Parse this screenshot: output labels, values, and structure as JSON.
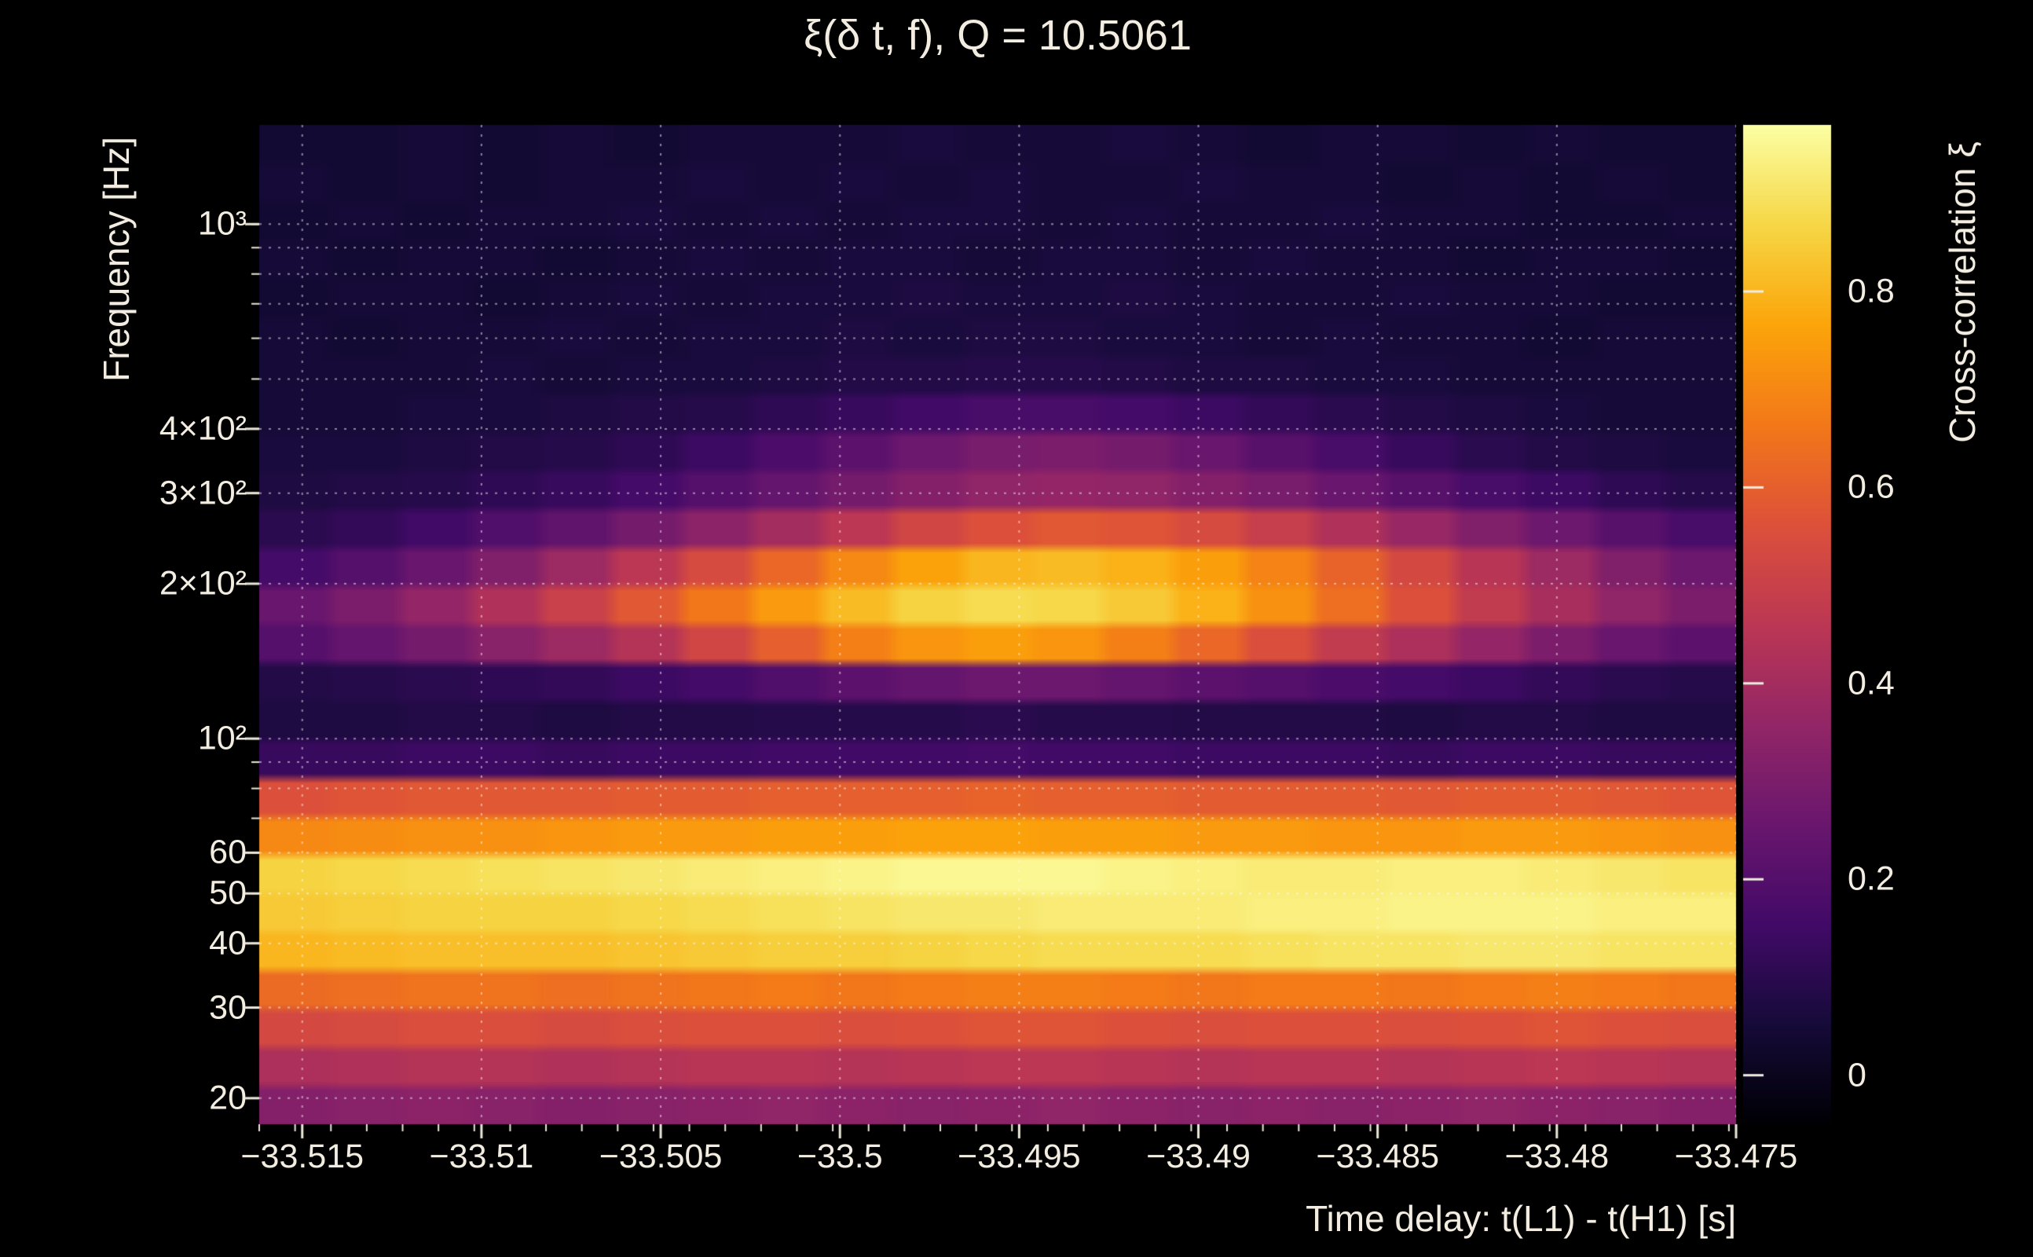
{
  "chart_data": {
    "type": "heatmap",
    "title": "ξ(δ t, f), Q = 10.5061",
    "xlabel": "Time delay: t(L1) - t(H1) [s]",
    "ylabel": "Frequency [Hz]",
    "colorbar_label": "Cross-correlation ξ",
    "x_range": [
      -33.5162,
      -33.475
    ],
    "y_range_hz": [
      17.8,
      1559
    ],
    "y_scale": "log",
    "grid_on": true,
    "x_ticks": [
      -33.515,
      -33.51,
      -33.505,
      -33.5,
      -33.495,
      -33.49,
      -33.485,
      -33.48,
      -33.475
    ],
    "x_tick_labels": [
      "−33.515",
      "−33.51",
      "−33.505",
      "−33.5",
      "−33.495",
      "−33.49",
      "−33.485",
      "−33.48",
      "−33.475"
    ],
    "x_minor_step": 0.001,
    "y_ticks": [
      {
        "hz": 1000,
        "label": "10³"
      },
      {
        "hz": 400,
        "label": "4×10²"
      },
      {
        "hz": 300,
        "label": "3×10²"
      },
      {
        "hz": 200,
        "label": "2×10²"
      },
      {
        "hz": 100,
        "label": "10²"
      },
      {
        "hz": 60,
        "label": "60"
      },
      {
        "hz": 50,
        "label": "50"
      },
      {
        "hz": 40,
        "label": "40"
      },
      {
        "hz": 30,
        "label": "30"
      },
      {
        "hz": 20,
        "label": "20"
      }
    ],
    "minor_gridlines_hz": [
      20,
      30,
      40,
      50,
      60,
      70,
      80,
      90,
      100,
      200,
      300,
      400,
      500,
      600,
      700,
      800,
      900,
      1000
    ],
    "colorbar": {
      "min": -0.05,
      "max": 0.97,
      "ticks": [
        {
          "value": 0.8,
          "label": "0.8"
        },
        {
          "value": 0.6,
          "label": "0.6"
        },
        {
          "value": 0.4,
          "label": "0.4"
        },
        {
          "value": 0.2,
          "label": "0.2"
        },
        {
          "value": 0.0,
          "label": "0"
        }
      ]
    },
    "colormap_stops": [
      [
        0.0,
        "#000004"
      ],
      [
        0.1,
        "#160b39"
      ],
      [
        0.2,
        "#420a68"
      ],
      [
        0.3,
        "#6a176e"
      ],
      [
        0.4,
        "#932667"
      ],
      [
        0.5,
        "#bc3754"
      ],
      [
        0.6,
        "#dd513a"
      ],
      [
        0.7,
        "#f37819"
      ],
      [
        0.8,
        "#fca50a"
      ],
      [
        0.9,
        "#f6d746"
      ],
      [
        1.0,
        "#fcffa4"
      ]
    ],
    "grid": {
      "rows_hz": [
        17.8,
        21.3,
        25.4,
        30.4,
        36.4,
        43.5,
        52.0,
        62.2,
        74.4,
        89.0,
        106,
        127,
        152,
        182,
        218,
        260,
        311,
        372,
        445,
        532,
        637,
        762,
        911,
        1090,
        1303,
        1559
      ],
      "n_cols": 21,
      "values": [
        [
          0.32,
          0.33,
          0.34,
          0.33,
          0.32,
          0.33,
          0.34,
          0.35,
          0.34,
          0.33,
          0.34,
          0.35,
          0.34,
          0.33,
          0.34,
          0.33,
          0.34,
          0.35,
          0.34,
          0.33,
          0.32
        ],
        [
          0.42,
          0.43,
          0.44,
          0.44,
          0.43,
          0.44,
          0.45,
          0.45,
          0.44,
          0.45,
          0.46,
          0.46,
          0.45,
          0.44,
          0.45,
          0.45,
          0.44,
          0.45,
          0.46,
          0.45,
          0.44
        ],
        [
          0.53,
          0.54,
          0.55,
          0.55,
          0.54,
          0.55,
          0.56,
          0.56,
          0.55,
          0.56,
          0.57,
          0.57,
          0.56,
          0.55,
          0.56,
          0.56,
          0.55,
          0.56,
          0.57,
          0.56,
          0.55
        ],
        [
          0.63,
          0.64,
          0.65,
          0.65,
          0.64,
          0.65,
          0.66,
          0.67,
          0.66,
          0.67,
          0.68,
          0.68,
          0.67,
          0.66,
          0.67,
          0.67,
          0.66,
          0.67,
          0.68,
          0.67,
          0.66
        ],
        [
          0.8,
          0.81,
          0.82,
          0.82,
          0.82,
          0.83,
          0.84,
          0.85,
          0.85,
          0.86,
          0.87,
          0.88,
          0.88,
          0.88,
          0.89,
          0.9,
          0.9,
          0.91,
          0.91,
          0.9,
          0.9
        ],
        [
          0.84,
          0.85,
          0.86,
          0.86,
          0.86,
          0.87,
          0.88,
          0.89,
          0.9,
          0.91,
          0.91,
          0.92,
          0.92,
          0.92,
          0.93,
          0.93,
          0.94,
          0.94,
          0.94,
          0.93,
          0.93
        ],
        [
          0.86,
          0.87,
          0.88,
          0.89,
          0.9,
          0.91,
          0.92,
          0.93,
          0.94,
          0.95,
          0.95,
          0.95,
          0.94,
          0.93,
          0.92,
          0.92,
          0.93,
          0.93,
          0.92,
          0.91,
          0.9
        ],
        [
          0.7,
          0.71,
          0.72,
          0.72,
          0.73,
          0.74,
          0.74,
          0.75,
          0.75,
          0.76,
          0.76,
          0.75,
          0.75,
          0.74,
          0.74,
          0.73,
          0.73,
          0.74,
          0.74,
          0.73,
          0.72
        ],
        [
          0.56,
          0.57,
          0.58,
          0.58,
          0.58,
          0.59,
          0.59,
          0.6,
          0.6,
          0.6,
          0.61,
          0.6,
          0.6,
          0.59,
          0.59,
          0.59,
          0.58,
          0.59,
          0.59,
          0.58,
          0.57
        ],
        [
          0.13,
          0.13,
          0.14,
          0.14,
          0.13,
          0.14,
          0.14,
          0.15,
          0.15,
          0.15,
          0.16,
          0.15,
          0.15,
          0.14,
          0.14,
          0.14,
          0.13,
          0.14,
          0.14,
          0.13,
          0.13
        ],
        [
          0.07,
          0.07,
          0.08,
          0.08,
          0.07,
          0.08,
          0.08,
          0.09,
          0.09,
          0.09,
          0.1,
          0.09,
          0.09,
          0.08,
          0.08,
          0.08,
          0.07,
          0.08,
          0.08,
          0.07,
          0.07
        ],
        [
          0.08,
          0.09,
          0.1,
          0.11,
          0.12,
          0.14,
          0.16,
          0.19,
          0.22,
          0.24,
          0.26,
          0.26,
          0.24,
          0.22,
          0.2,
          0.18,
          0.16,
          0.14,
          0.12,
          0.1,
          0.09
        ],
        [
          0.2,
          0.24,
          0.28,
          0.33,
          0.38,
          0.44,
          0.52,
          0.6,
          0.68,
          0.73,
          0.75,
          0.73,
          0.68,
          0.62,
          0.55,
          0.48,
          0.42,
          0.36,
          0.3,
          0.25,
          0.22
        ],
        [
          0.25,
          0.3,
          0.36,
          0.43,
          0.5,
          0.58,
          0.66,
          0.74,
          0.81,
          0.86,
          0.88,
          0.87,
          0.84,
          0.79,
          0.72,
          0.64,
          0.56,
          0.48,
          0.41,
          0.35,
          0.3
        ],
        [
          0.16,
          0.2,
          0.25,
          0.31,
          0.38,
          0.46,
          0.54,
          0.62,
          0.7,
          0.76,
          0.8,
          0.81,
          0.79,
          0.75,
          0.69,
          0.61,
          0.53,
          0.45,
          0.38,
          0.31,
          0.26
        ],
        [
          0.1,
          0.12,
          0.15,
          0.19,
          0.23,
          0.28,
          0.34,
          0.4,
          0.46,
          0.52,
          0.56,
          0.58,
          0.57,
          0.54,
          0.49,
          0.43,
          0.37,
          0.31,
          0.26,
          0.21,
          0.17
        ],
        [
          0.07,
          0.08,
          0.09,
          0.11,
          0.13,
          0.16,
          0.2,
          0.24,
          0.28,
          0.32,
          0.35,
          0.36,
          0.35,
          0.32,
          0.29,
          0.25,
          0.21,
          0.17,
          0.14,
          0.11,
          0.09
        ],
        [
          0.06,
          0.06,
          0.07,
          0.08,
          0.09,
          0.11,
          0.14,
          0.18,
          0.22,
          0.26,
          0.29,
          0.3,
          0.28,
          0.25,
          0.21,
          0.17,
          0.13,
          0.1,
          0.08,
          0.07,
          0.06
        ],
        [
          0.05,
          0.05,
          0.06,
          0.06,
          0.07,
          0.08,
          0.09,
          0.11,
          0.13,
          0.15,
          0.17,
          0.17,
          0.16,
          0.14,
          0.12,
          0.1,
          0.08,
          0.07,
          0.06,
          0.05,
          0.05
        ],
        [
          0.05,
          0.05,
          0.05,
          0.06,
          0.05,
          0.06,
          0.06,
          0.07,
          0.08,
          0.08,
          0.09,
          0.09,
          0.08,
          0.07,
          0.07,
          0.06,
          0.06,
          0.05,
          0.05,
          0.05,
          0.05
        ],
        [
          0.05,
          0.04,
          0.05,
          0.05,
          0.06,
          0.05,
          0.06,
          0.06,
          0.07,
          0.06,
          0.07,
          0.07,
          0.06,
          0.06,
          0.05,
          0.06,
          0.05,
          0.05,
          0.04,
          0.05,
          0.05
        ],
        [
          0.04,
          0.05,
          0.05,
          0.04,
          0.05,
          0.06,
          0.05,
          0.06,
          0.06,
          0.07,
          0.06,
          0.06,
          0.07,
          0.06,
          0.05,
          0.05,
          0.06,
          0.05,
          0.05,
          0.04,
          0.04
        ],
        [
          0.05,
          0.04,
          0.05,
          0.05,
          0.04,
          0.05,
          0.06,
          0.05,
          0.06,
          0.06,
          0.05,
          0.06,
          0.06,
          0.05,
          0.06,
          0.05,
          0.05,
          0.04,
          0.05,
          0.05,
          0.04
        ],
        [
          0.04,
          0.05,
          0.04,
          0.05,
          0.05,
          0.06,
          0.05,
          0.06,
          0.05,
          0.06,
          0.06,
          0.05,
          0.06,
          0.05,
          0.05,
          0.06,
          0.05,
          0.05,
          0.04,
          0.04,
          0.05
        ],
        [
          0.05,
          0.04,
          0.05,
          0.04,
          0.05,
          0.05,
          0.06,
          0.05,
          0.06,
          0.05,
          0.06,
          0.05,
          0.05,
          0.06,
          0.05,
          0.05,
          0.04,
          0.05,
          0.04,
          0.05,
          0.04
        ],
        [
          0.04,
          0.04,
          0.05,
          0.04,
          0.05,
          0.04,
          0.05,
          0.05,
          0.05,
          0.06,
          0.05,
          0.05,
          0.06,
          0.05,
          0.04,
          0.05,
          0.05,
          0.04,
          0.05,
          0.04,
          0.04
        ]
      ]
    }
  }
}
